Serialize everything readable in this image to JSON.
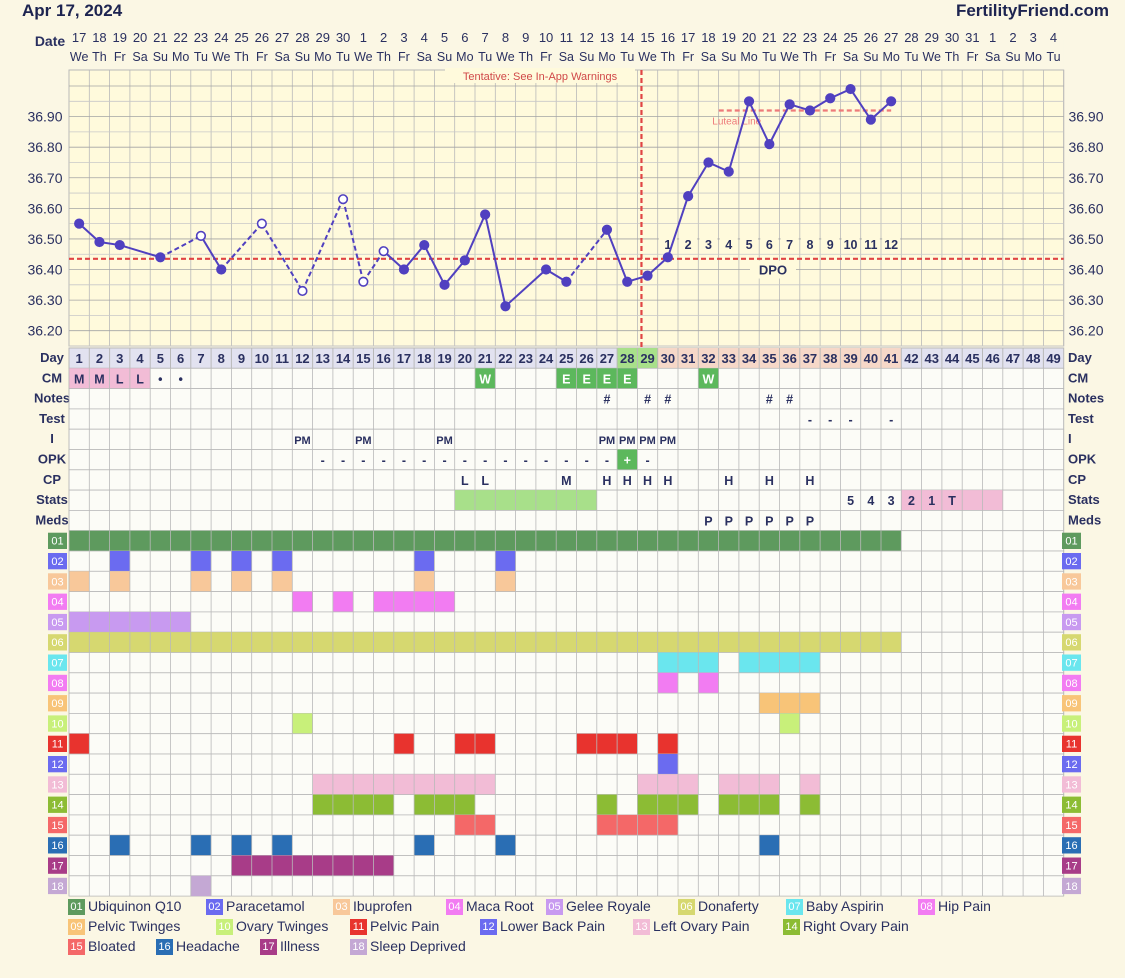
{
  "header": {
    "date": "Apr 17, 2024",
    "brand": "FertilityFriend.com",
    "warning": "Tentative: See In-App Warnings"
  },
  "labels": {
    "date_row": "Date",
    "day_row": "Day",
    "dpo": "DPO",
    "luteal": "Luteal Line"
  },
  "chart_data": {
    "type": "line",
    "title": "",
    "ylim": [
      36.15,
      37.0
    ],
    "y_ticks": [
      "36.20",
      "36.30",
      "36.40",
      "36.50",
      "36.60",
      "36.70",
      "36.80",
      "36.90"
    ],
    "days": [
      1,
      2,
      3,
      4,
      5,
      6,
      7,
      8,
      9,
      10,
      11,
      12,
      13,
      14,
      15,
      16,
      17,
      18,
      19,
      20,
      21,
      22,
      23,
      24,
      25,
      26,
      27,
      28,
      29,
      30,
      31,
      32,
      33,
      34,
      35,
      36,
      37,
      38,
      39,
      40,
      41,
      42,
      43,
      44,
      45,
      46,
      47,
      48,
      49
    ],
    "dates": [
      "17",
      "18",
      "19",
      "20",
      "21",
      "22",
      "23",
      "24",
      "25",
      "26",
      "27",
      "28",
      "29",
      "30",
      "1",
      "2",
      "3",
      "4",
      "5",
      "6",
      "7",
      "8",
      "9",
      "10",
      "11",
      "12",
      "13",
      "14",
      "15",
      "16",
      "17",
      "18",
      "19",
      "20",
      "21",
      "22",
      "23",
      "24",
      "25",
      "26",
      "27",
      "28",
      "29",
      "30",
      "31",
      "1",
      "2",
      "3",
      "4"
    ],
    "weekdays": [
      "We",
      "Th",
      "Fr",
      "Sa",
      "Su",
      "Mo",
      "Tu",
      "We",
      "Th",
      "Fr",
      "Sa",
      "Su",
      "Mo",
      "Tu",
      "We",
      "Th",
      "Fr",
      "Sa",
      "Su",
      "Mo",
      "Tu",
      "We",
      "Th",
      "Fr",
      "Sa",
      "Su",
      "Mo",
      "Tu",
      "We",
      "Th",
      "Fr",
      "Sa",
      "Su",
      "Mo",
      "Tu",
      "We",
      "Th",
      "Fr",
      "Sa",
      "Su",
      "Mo",
      "Tu",
      "We",
      "Th",
      "Fr",
      "Sa",
      "Su",
      "Mo",
      "Tu"
    ],
    "temps": [
      {
        "day": 1,
        "t": 36.55,
        "open": false
      },
      {
        "day": 2,
        "t": 36.49,
        "open": false
      },
      {
        "day": 3,
        "t": 36.48,
        "open": false
      },
      {
        "day": 5,
        "t": 36.44,
        "open": false
      },
      {
        "day": 7,
        "t": 36.51,
        "open": true
      },
      {
        "day": 8,
        "t": 36.4,
        "open": false
      },
      {
        "day": 10,
        "t": 36.55,
        "open": true
      },
      {
        "day": 12,
        "t": 36.33,
        "open": true
      },
      {
        "day": 14,
        "t": 36.63,
        "open": true
      },
      {
        "day": 15,
        "t": 36.36,
        "open": true
      },
      {
        "day": 16,
        "t": 36.46,
        "open": true
      },
      {
        "day": 17,
        "t": 36.4,
        "open": false
      },
      {
        "day": 18,
        "t": 36.48,
        "open": false
      },
      {
        "day": 19,
        "t": 36.35,
        "open": false
      },
      {
        "day": 20,
        "t": 36.43,
        "open": false
      },
      {
        "day": 21,
        "t": 36.58,
        "open": false
      },
      {
        "day": 22,
        "t": 36.28,
        "open": false
      },
      {
        "day": 24,
        "t": 36.4,
        "open": false
      },
      {
        "day": 25,
        "t": 36.36,
        "open": false
      },
      {
        "day": 27,
        "t": 36.53,
        "open": false
      },
      {
        "day": 28,
        "t": 36.36,
        "open": false
      },
      {
        "day": 29,
        "t": 36.38,
        "open": false
      },
      {
        "day": 30,
        "t": 36.44,
        "open": false
      },
      {
        "day": 31,
        "t": 36.64,
        "open": false
      },
      {
        "day": 32,
        "t": 36.75,
        "open": false
      },
      {
        "day": 33,
        "t": 36.72,
        "open": false
      },
      {
        "day": 34,
        "t": 36.95,
        "open": false
      },
      {
        "day": 35,
        "t": 36.81,
        "open": false
      },
      {
        "day": 36,
        "t": 36.94,
        "open": false
      },
      {
        "day": 37,
        "t": 36.92,
        "open": false
      },
      {
        "day": 38,
        "t": 36.96,
        "open": false
      },
      {
        "day": 39,
        "t": 36.99,
        "open": false
      },
      {
        "day": 40,
        "t": 36.89,
        "open": false
      },
      {
        "day": 41,
        "t": 36.95,
        "open": false
      }
    ],
    "dashed_segments": [
      [
        5,
        7
      ],
      [
        8,
        10
      ],
      [
        10,
        12
      ],
      [
        12,
        14
      ],
      [
        14,
        15
      ],
      [
        15,
        16
      ],
      [
        25,
        27
      ]
    ],
    "coverline": 36.435,
    "luteal_line": {
      "start_day": 33,
      "end_day": 41,
      "value": 36.92
    },
    "ovulation_day": 29,
    "dpo_labels": [
      {
        "day": 30,
        "text": "1"
      },
      {
        "day": 31,
        "text": "2"
      },
      {
        "day": 32,
        "text": "3"
      },
      {
        "day": 33,
        "text": "4"
      },
      {
        "day": 34,
        "text": "5"
      },
      {
        "day": 35,
        "text": "6"
      },
      {
        "day": 36,
        "text": "7"
      },
      {
        "day": 37,
        "text": "8"
      },
      {
        "day": 38,
        "text": "9"
      },
      {
        "day": 39,
        "text": "10"
      },
      {
        "day": 40,
        "text": "11"
      },
      {
        "day": 41,
        "text": "12"
      }
    ],
    "rows": [
      {
        "label": "CM",
        "cells": [
          {
            "day": 1,
            "text": "M",
            "bg": "#f2bcd6"
          },
          {
            "day": 2,
            "text": "M",
            "bg": "#f2bcd6"
          },
          {
            "day": 3,
            "text": "L",
            "bg": "#f2bcd6"
          },
          {
            "day": 4,
            "text": "L",
            "bg": "#f2bcd6"
          },
          {
            "day": 5,
            "text": "•"
          },
          {
            "day": 6,
            "text": "•"
          },
          {
            "day": 21,
            "text": "W",
            "bg": "#5cb85c",
            "color": "#ffffff"
          },
          {
            "day": 25,
            "text": "E",
            "bg": "#5cb85c",
            "color": "#ffffff"
          },
          {
            "day": 26,
            "text": "E",
            "bg": "#5cb85c",
            "color": "#ffffff"
          },
          {
            "day": 27,
            "text": "E",
            "bg": "#5cb85c",
            "color": "#ffffff"
          },
          {
            "day": 28,
            "text": "E",
            "bg": "#5cb85c",
            "color": "#ffffff"
          },
          {
            "day": 32,
            "text": "W",
            "bg": "#5cb85c",
            "color": "#ffffff"
          }
        ]
      },
      {
        "label": "Notes",
        "cells": [
          {
            "day": 27,
            "text": "#"
          },
          {
            "day": 29,
            "text": "#"
          },
          {
            "day": 30,
            "text": "#"
          },
          {
            "day": 35,
            "text": "#"
          },
          {
            "day": 36,
            "text": "#"
          }
        ]
      },
      {
        "label": "Test",
        "cells": [
          {
            "day": 37,
            "text": "-"
          },
          {
            "day": 38,
            "text": "-"
          },
          {
            "day": 39,
            "text": "-"
          },
          {
            "day": 41,
            "text": "-"
          }
        ]
      },
      {
        "label": "I",
        "cells": [
          {
            "day": 12,
            "text": "PM"
          },
          {
            "day": 15,
            "text": "PM"
          },
          {
            "day": 19,
            "text": "PM"
          },
          {
            "day": 27,
            "text": "PM"
          },
          {
            "day": 28,
            "text": "PM"
          },
          {
            "day": 29,
            "text": "PM"
          },
          {
            "day": 30,
            "text": "PM"
          }
        ]
      },
      {
        "label": "OPK",
        "cells": [
          {
            "day": 13,
            "text": "-"
          },
          {
            "day": 14,
            "text": "-"
          },
          {
            "day": 15,
            "text": "-"
          },
          {
            "day": 16,
            "text": "-"
          },
          {
            "day": 17,
            "text": "-"
          },
          {
            "day": 18,
            "text": "-"
          },
          {
            "day": 19,
            "text": "-"
          },
          {
            "day": 20,
            "text": "-"
          },
          {
            "day": 21,
            "text": "-"
          },
          {
            "day": 22,
            "text": "-"
          },
          {
            "day": 23,
            "text": "-"
          },
          {
            "day": 24,
            "text": "-"
          },
          {
            "day": 25,
            "text": "-"
          },
          {
            "day": 26,
            "text": "-"
          },
          {
            "day": 27,
            "text": "-"
          },
          {
            "day": 28,
            "text": "+",
            "bg": "#5cb85c",
            "color": "#ffffff"
          },
          {
            "day": 29,
            "text": "-"
          }
        ]
      },
      {
        "label": "CP",
        "cells": [
          {
            "day": 20,
            "text": "L"
          },
          {
            "day": 21,
            "text": "L"
          },
          {
            "day": 25,
            "text": "M"
          },
          {
            "day": 27,
            "text": "H"
          },
          {
            "day": 28,
            "text": "H"
          },
          {
            "day": 29,
            "text": "H"
          },
          {
            "day": 30,
            "text": "H"
          },
          {
            "day": 33,
            "text": "H"
          },
          {
            "day": 35,
            "text": "H"
          },
          {
            "day": 37,
            "text": "H"
          }
        ]
      },
      {
        "label": "Stats",
        "cells": [
          {
            "day": 20,
            "text": "",
            "bg": "#a8e08a"
          },
          {
            "day": 21,
            "text": "",
            "bg": "#a8e08a"
          },
          {
            "day": 22,
            "text": "",
            "bg": "#a8e08a"
          },
          {
            "day": 23,
            "text": "",
            "bg": "#a8e08a"
          },
          {
            "day": 24,
            "text": "",
            "bg": "#a8e08a"
          },
          {
            "day": 25,
            "text": "",
            "bg": "#a8e08a"
          },
          {
            "day": 26,
            "text": "",
            "bg": "#a8e08a"
          },
          {
            "day": 39,
            "text": "5"
          },
          {
            "day": 40,
            "text": "4"
          },
          {
            "day": 41,
            "text": "3"
          },
          {
            "day": 42,
            "text": "2",
            "bg": "#f2bcd6"
          },
          {
            "day": 43,
            "text": "1",
            "bg": "#f2bcd6"
          },
          {
            "day": 44,
            "text": "T",
            "bg": "#f2bcd6"
          },
          {
            "day": 45,
            "text": "",
            "bg": "#f2bcd6"
          },
          {
            "day": 46,
            "text": "",
            "bg": "#f2bcd6"
          }
        ]
      },
      {
        "label": "Meds",
        "cells": [
          {
            "day": 32,
            "text": "P"
          },
          {
            "day": 33,
            "text": "P"
          },
          {
            "day": 34,
            "text": "P"
          },
          {
            "day": 35,
            "text": "P"
          },
          {
            "day": 36,
            "text": "P"
          },
          {
            "day": 37,
            "text": "P"
          }
        ]
      }
    ],
    "symptoms": [
      {
        "code": "01",
        "name": "Ubiquinon Q10",
        "color": "#5e9a5e",
        "days": [
          1,
          2,
          3,
          4,
          5,
          6,
          7,
          8,
          9,
          10,
          11,
          12,
          13,
          14,
          15,
          16,
          17,
          18,
          19,
          20,
          21,
          22,
          23,
          24,
          25,
          26,
          27,
          28,
          29,
          30,
          31,
          32,
          33,
          34,
          35,
          36,
          37,
          38,
          39,
          40,
          41
        ]
      },
      {
        "code": "02",
        "name": "Paracetamol",
        "color": "#6b6bf0",
        "days": [
          3,
          7,
          9,
          11,
          18,
          22
        ]
      },
      {
        "code": "03",
        "name": "Ibuprofen",
        "color": "#f8c89a",
        "days": [
          1,
          3,
          7,
          9,
          11,
          18,
          22
        ]
      },
      {
        "code": "04",
        "name": "Maca Root",
        "color": "#f27cf2",
        "days": [
          12,
          14,
          16,
          17,
          18,
          19
        ]
      },
      {
        "code": "05",
        "name": "Gelee Royale",
        "color": "#c89af0",
        "days": [
          1,
          2,
          3,
          4,
          5,
          6
        ]
      },
      {
        "code": "06",
        "name": "Donaferty",
        "color": "#d6d870",
        "days": [
          1,
          2,
          3,
          4,
          5,
          6,
          7,
          8,
          9,
          10,
          11,
          12,
          13,
          14,
          15,
          16,
          17,
          18,
          19,
          20,
          21,
          22,
          23,
          24,
          25,
          26,
          27,
          28,
          29,
          30,
          31,
          32,
          33,
          34,
          35,
          36,
          37,
          38,
          39,
          40,
          41
        ]
      },
      {
        "code": "07",
        "name": "Baby Aspirin",
        "color": "#6ae6ee",
        "days": [
          30,
          31,
          32,
          34,
          35,
          36,
          37
        ]
      },
      {
        "code": "08",
        "name": "Hip Pain",
        "color": "#f27cf2",
        "days": [
          30,
          32
        ]
      },
      {
        "code": "09",
        "name": "Pelvic Twinges",
        "color": "#f8c478",
        "days": [
          35,
          36,
          37
        ]
      },
      {
        "code": "10",
        "name": "Ovary Twinges",
        "color": "#c8f07a",
        "days": [
          12,
          36
        ]
      },
      {
        "code": "11",
        "name": "Pelvic Pain",
        "color": "#e8332e",
        "days": [
          1,
          17,
          20,
          21,
          26,
          27,
          28,
          30
        ]
      },
      {
        "code": "12",
        "name": "Lower Back Pain",
        "color": "#6b6bf0",
        "days": [
          30
        ]
      },
      {
        "code": "13",
        "name": "Left Ovary Pain",
        "color": "#f2bcd6",
        "days": [
          13,
          14,
          15,
          16,
          17,
          18,
          19,
          20,
          21,
          29,
          30,
          31,
          33,
          34,
          35,
          37
        ]
      },
      {
        "code": "14",
        "name": "Right Ovary Pain",
        "color": "#8cbc34",
        "days": [
          13,
          14,
          15,
          16,
          18,
          19,
          20,
          27,
          29,
          30,
          31,
          33,
          34,
          35,
          37
        ]
      },
      {
        "code": "15",
        "name": "Bloated",
        "color": "#f46868",
        "days": [
          20,
          21,
          27,
          28,
          29,
          30
        ]
      },
      {
        "code": "16",
        "name": "Headache",
        "color": "#2a6eb4",
        "days": [
          3,
          7,
          9,
          11,
          18,
          22,
          35
        ]
      },
      {
        "code": "17",
        "name": "Illness",
        "color": "#a83c88",
        "days": [
          9,
          10,
          11,
          12,
          13,
          14,
          15,
          16
        ]
      },
      {
        "code": "18",
        "name": "Sleep Deprived",
        "color": "#c4a8d4",
        "days": [
          7
        ]
      }
    ]
  }
}
